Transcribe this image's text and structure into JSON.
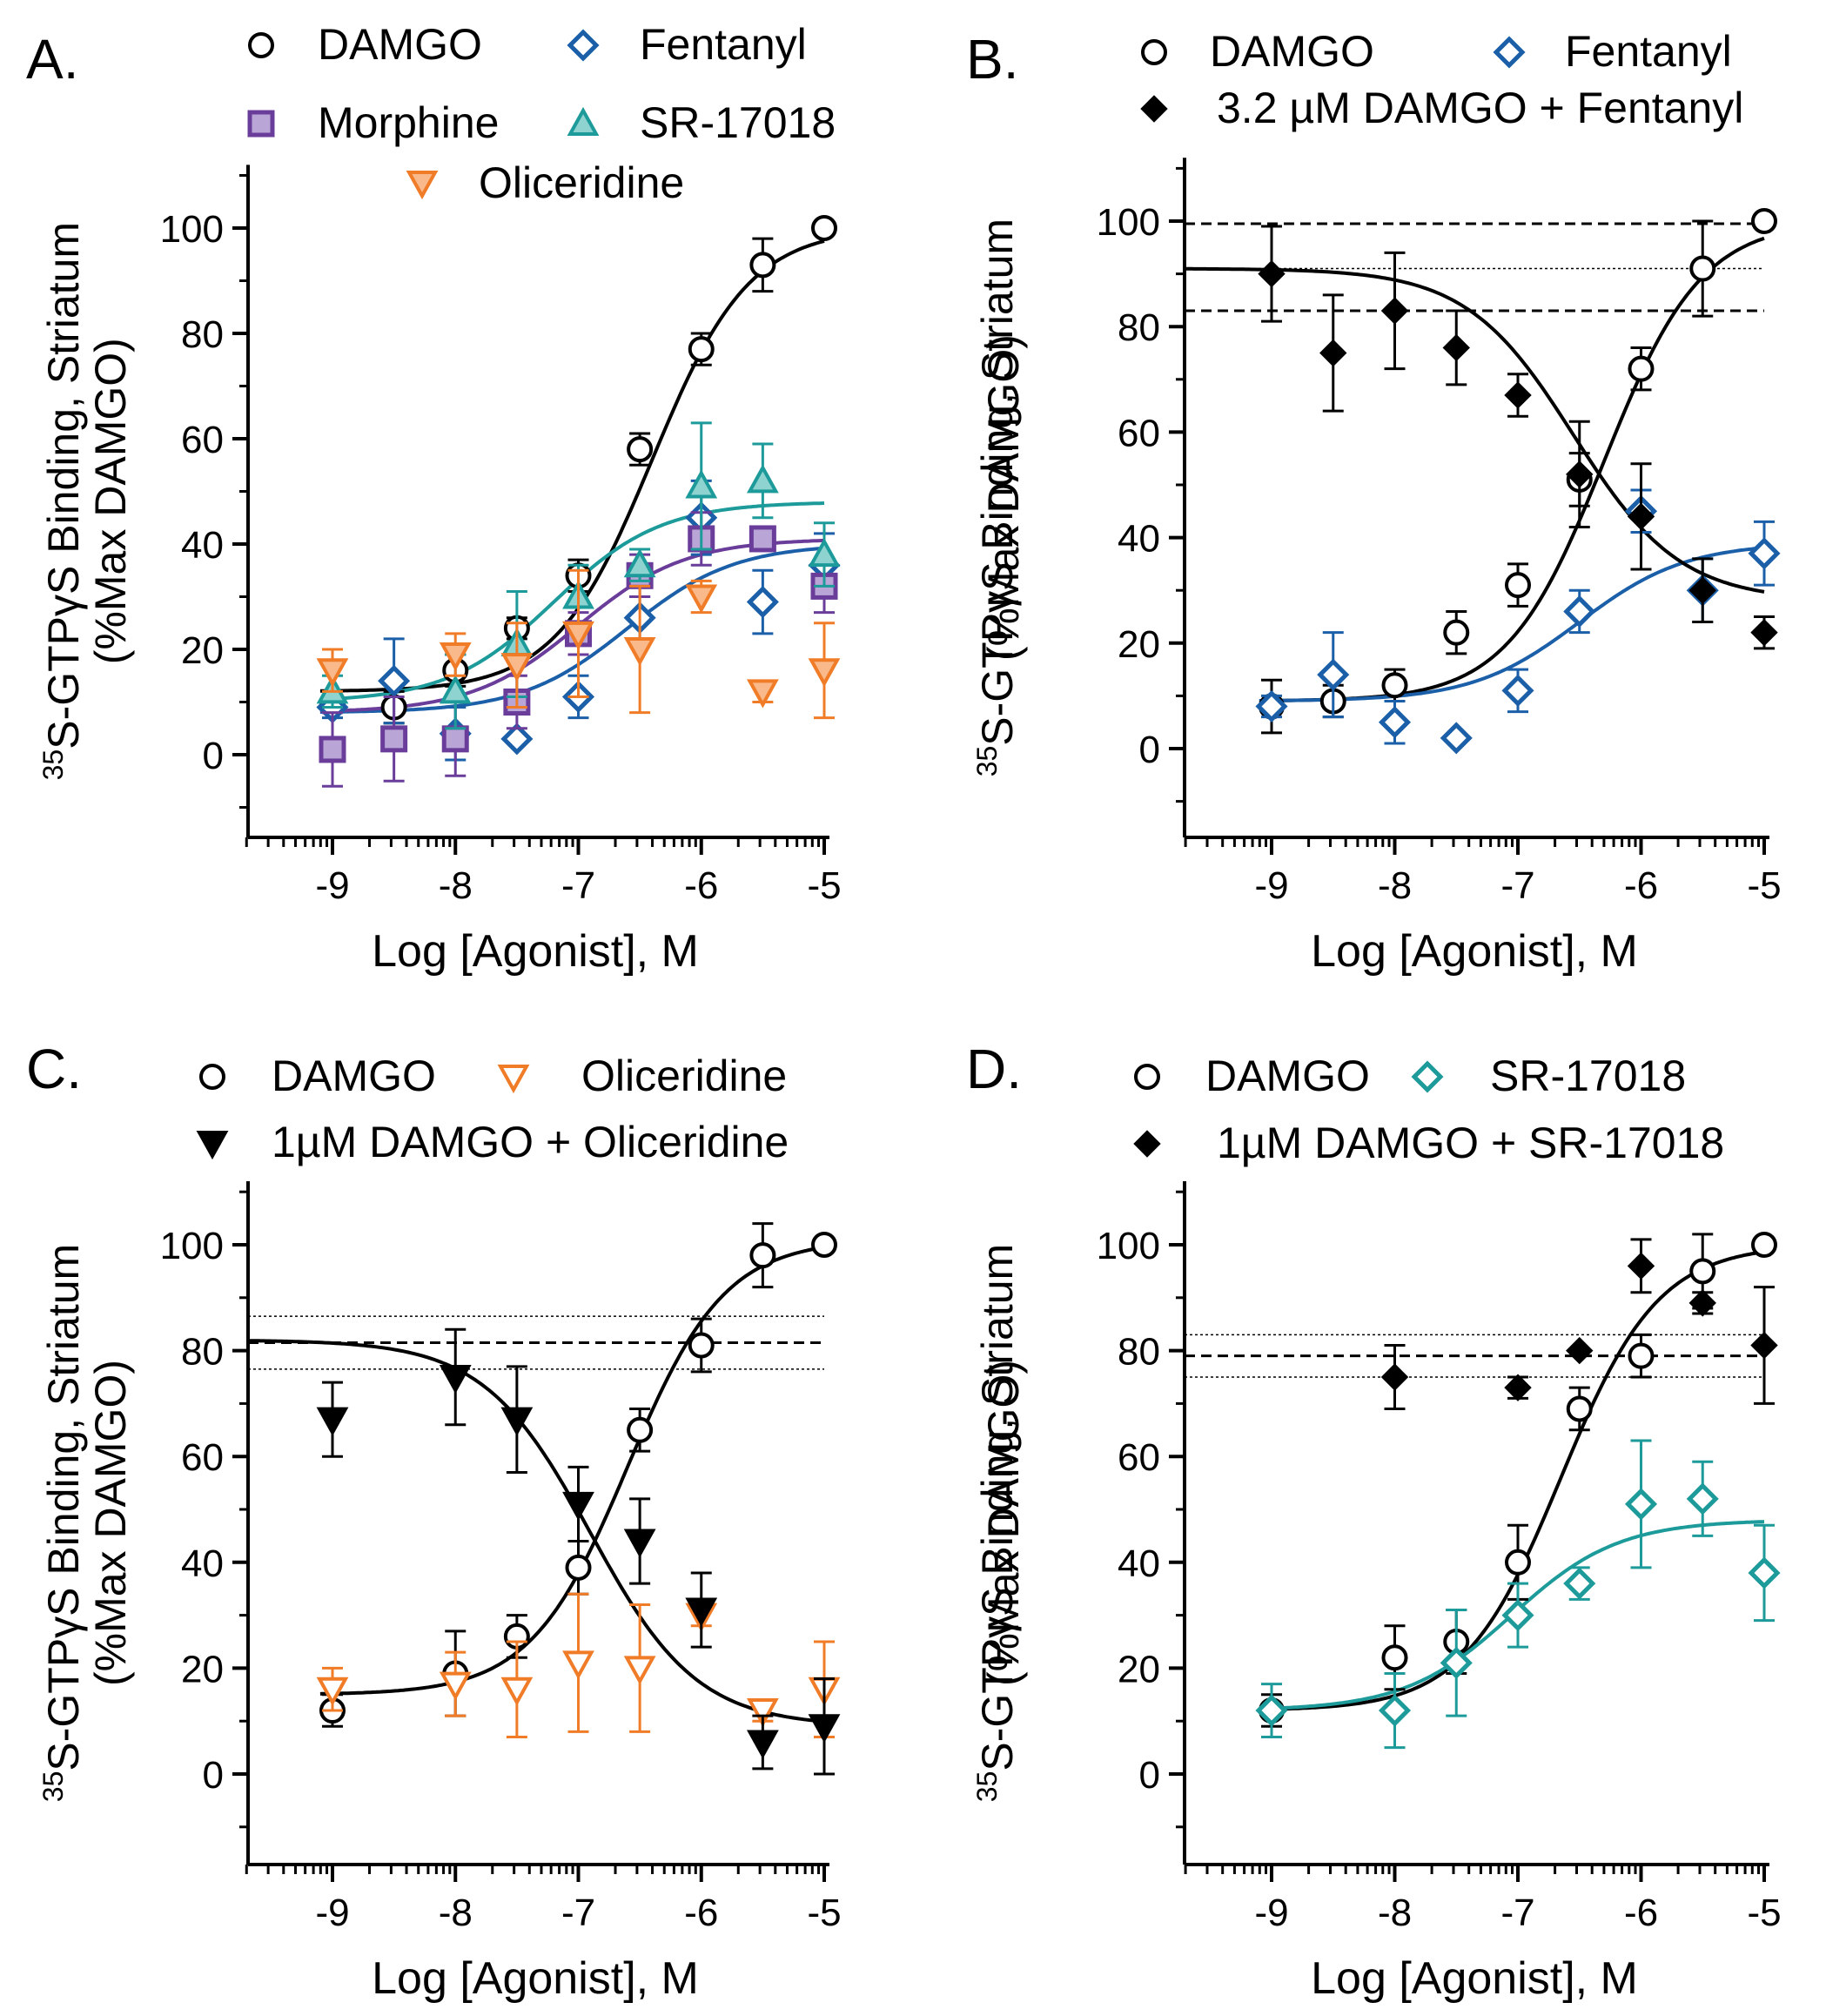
{
  "chart_data": [
    {
      "type": "line",
      "panel": "A.",
      "xlabel": "Log [Agonist], M",
      "ylabel_line1": "S-GTPγS Binding, Striatum",
      "ylabel_sup": "35",
      "ylabel_line2": "(%Max DAMGO)",
      "xlim": [
        -9.7,
        -5
      ],
      "ylim": [
        -15,
        112
      ],
      "xticks": [
        -9,
        -8,
        -7,
        -6,
        -5
      ],
      "xtick_labels": [
        "-9",
        "-8",
        "-7",
        "-6",
        "-5"
      ],
      "yticks": [
        0,
        20,
        40,
        60,
        80,
        100
      ],
      "ytick_labels": [
        "0",
        "20",
        "40",
        "60",
        "80",
        "100"
      ],
      "legend": [
        {
          "label": "DAMGO",
          "series": 0
        },
        {
          "label": "Fentanyl",
          "series": 1
        },
        {
          "label": "Morphine",
          "series": 2
        },
        {
          "label": "SR-17018",
          "series": 3
        },
        {
          "label": "Oliceridine",
          "series": 4
        }
      ],
      "series": [
        {
          "name": "DAMGO",
          "color": "#000000",
          "marker": "circle-open",
          "x": [
            -9,
            -8.5,
            -8,
            -7.5,
            -7,
            -6.5,
            -6,
            -5.5,
            -5
          ],
          "y": [
            10,
            9,
            16,
            24,
            34,
            58,
            77,
            93,
            100
          ],
          "err": [
            2,
            3,
            3,
            2,
            3,
            3,
            3,
            5,
            0
          ],
          "fit": {
            "bottom": 12,
            "top": 100,
            "logec50": -6.4,
            "hill": 1.1
          }
        },
        {
          "name": "Fentanyl",
          "color": "#1a5fa8",
          "marker": "diamond-open",
          "x": [
            -9,
            -8.5,
            -8,
            -7.5,
            -7,
            -6.5,
            -6,
            -5.5,
            -5
          ],
          "y": [
            9,
            14,
            4,
            3,
            11,
            26,
            45,
            29,
            36
          ],
          "err": [
            2,
            8,
            5,
            0,
            4,
            4,
            7,
            6,
            6
          ],
          "fit": {
            "bottom": 8,
            "top": 40,
            "logec50": -6.6,
            "hill": 1.0
          }
        },
        {
          "name": "Morphine",
          "color": "#6a3d9a",
          "fill": "#b9a6d6",
          "marker": "square-filled",
          "x": [
            -9,
            -8.5,
            -8,
            -7.5,
            -7,
            -6.5,
            -6,
            -5.5,
            -5
          ],
          "y": [
            1,
            3,
            3,
            10,
            23,
            34,
            41,
            41,
            32
          ],
          "err": [
            7,
            8,
            7,
            5,
            4,
            4,
            5,
            0,
            5
          ],
          "fit": {
            "bottom": 8,
            "top": 41,
            "logec50": -7.0,
            "hill": 1.0
          }
        },
        {
          "name": "SR-17018",
          "color": "#1d9a9a",
          "fill": "#8fd3d0",
          "marker": "triangle-up-filled",
          "x": [
            -9,
            -8,
            -7.5,
            -7,
            -6.5,
            -6,
            -5.5,
            -5
          ],
          "y": [
            12,
            12,
            21,
            30,
            36,
            51,
            52,
            38
          ],
          "err": [
            3,
            7,
            10,
            6,
            3,
            12,
            7,
            6
          ],
          "fit": {
            "bottom": 10,
            "top": 48,
            "logec50": -7.2,
            "hill": 1.0
          }
        },
        {
          "name": "Oliceridine",
          "color": "#f07c28",
          "fill": "#f9b98a",
          "marker": "triangle-down-filled",
          "x": [
            -9,
            -8,
            -7.5,
            -7,
            -6.5,
            -6,
            -5.5,
            -5
          ],
          "y": [
            16,
            19,
            17,
            23,
            20,
            30,
            12,
            16
          ],
          "err": [
            4,
            4,
            8,
            12,
            12,
            3,
            2,
            9
          ],
          "fit": null
        }
      ]
    },
    {
      "type": "line",
      "panel": "B.",
      "xlabel": "Log [Agonist], M",
      "ylabel_line1": "S-GTPγS Binding, Striatum",
      "ylabel_sup": "35",
      "ylabel_line2": "(%Max DAMGO)",
      "xlim": [
        -9.7,
        -5
      ],
      "ylim": [
        -15,
        112
      ],
      "xticks": [
        -9,
        -8,
        -7,
        -6,
        -5
      ],
      "xtick_labels": [
        "-9",
        "-8",
        "-7",
        "-6",
        "-5"
      ],
      "yticks": [
        0,
        20,
        40,
        60,
        80,
        100
      ],
      "ytick_labels": [
        "0",
        "20",
        "40",
        "60",
        "80",
        "100"
      ],
      "hlines": [
        {
          "y": 99.5,
          "style": "dashed"
        },
        {
          "y": 91,
          "style": "dotted"
        },
        {
          "y": 83,
          "style": "dashed"
        }
      ],
      "legend": [
        {
          "label": "DAMGO",
          "series": 0
        },
        {
          "label": "Fentanyl",
          "series": 1
        },
        {
          "label": "3.2 µM DAMGO + Fentanyl",
          "series": 2
        }
      ],
      "series": [
        {
          "name": "DAMGO",
          "color": "#000000",
          "marker": "circle-open",
          "x": [
            -9,
            -8.5,
            -8,
            -7.5,
            -7,
            -6.5,
            -6,
            -5.5,
            -5
          ],
          "y": [
            8,
            9,
            12,
            22,
            31,
            51,
            72,
            91,
            100
          ],
          "err": [
            5,
            3,
            3,
            4,
            4,
            5,
            4,
            9,
            0
          ],
          "fit": {
            "bottom": 9,
            "top": 100,
            "logec50": -6.3,
            "hill": 1.1
          }
        },
        {
          "name": "Fentanyl",
          "color": "#1a5fa8",
          "marker": "diamond-open",
          "x": [
            -9,
            -8.5,
            -8,
            -7.5,
            -7,
            -6.5,
            -6,
            -5.5,
            -5
          ],
          "y": [
            8,
            14,
            5,
            2,
            11,
            26,
            45,
            30,
            37
          ],
          "err": [
            2,
            8,
            4,
            0,
            4,
            4,
            4,
            6,
            6
          ],
          "fit": {
            "bottom": 9,
            "top": 39,
            "logec50": -6.5,
            "hill": 1.0
          }
        },
        {
          "name": "3.2 µM DAMGO + Fentanyl",
          "color": "#000000",
          "marker": "diamond-filled",
          "x": [
            -9,
            -8.5,
            -8,
            -7.5,
            -7,
            -6.5,
            -6,
            -5.5,
            -5
          ],
          "y": [
            90,
            75,
            83,
            76,
            67,
            52,
            44,
            30,
            22
          ],
          "err": [
            9,
            11,
            11,
            7,
            4,
            10,
            10,
            6,
            3
          ],
          "fit": {
            "bottom": 28,
            "top": 91,
            "logec50": -6.55,
            "hill": -1.0
          }
        }
      ]
    },
    {
      "type": "line",
      "panel": "C.",
      "xlabel": "Log [Agonist], M",
      "ylabel_line1": "S-GTPγS Binding, Striatum",
      "ylabel_sup": "35",
      "ylabel_line2": "(%Max DAMGO)",
      "xlim": [
        -9.7,
        -5
      ],
      "ylim": [
        -15,
        112
      ],
      "xticks": [
        -9,
        -8,
        -7,
        -6,
        -5
      ],
      "xtick_labels": [
        "-9",
        "-8",
        "-7",
        "-6",
        "-5"
      ],
      "yticks": [
        0,
        20,
        40,
        60,
        80,
        100
      ],
      "ytick_labels": [
        "0",
        "20",
        "40",
        "60",
        "80",
        "100"
      ],
      "hlines": [
        {
          "y": 86.5,
          "style": "dotted"
        },
        {
          "y": 81.5,
          "style": "dashed"
        },
        {
          "y": 76.5,
          "style": "dotted"
        }
      ],
      "legend": [
        {
          "label": "DAMGO",
          "series": 0
        },
        {
          "label": "Oliceridine",
          "series": 1
        },
        {
          "label": "1µM DAMGO + Oliceridine",
          "series": 2
        }
      ],
      "series": [
        {
          "name": "DAMGO",
          "color": "#000000",
          "marker": "circle-open",
          "x": [
            -9,
            -8,
            -7.5,
            -7,
            -6.5,
            -6,
            -5.5,
            -5
          ],
          "y": [
            12,
            19,
            26,
            39,
            65,
            81,
            98,
            100
          ],
          "err": [
            3,
            8,
            4,
            5,
            4,
            5,
            6,
            0
          ],
          "fit": {
            "bottom": 15,
            "top": 101,
            "logec50": -6.6,
            "hill": 1.1
          }
        },
        {
          "name": "Oliceridine",
          "color": "#f07c28",
          "marker": "triangle-down-open",
          "x": [
            -9,
            -8,
            -7.5,
            -7,
            -6.5,
            -6,
            -5.5,
            -5
          ],
          "y": [
            16,
            17,
            16,
            21,
            20,
            30,
            12,
            16
          ],
          "err": [
            4,
            6,
            9,
            13,
            12,
            2,
            2,
            9
          ],
          "fit": null
        },
        {
          "name": "1µM DAMGO + Oliceridine",
          "color": "#000000",
          "marker": "triangle-down-filled",
          "x": [
            -9,
            -8,
            -7.5,
            -7,
            -6.5,
            -6,
            -5.5,
            -5
          ],
          "y": [
            67,
            75,
            67,
            51,
            44,
            31,
            6,
            9
          ],
          "err": [
            7,
            9,
            10,
            7,
            8,
            7,
            5,
            9
          ],
          "fit": {
            "bottom": 9,
            "top": 82,
            "logec50": -6.9,
            "hill": -1.0
          }
        }
      ]
    },
    {
      "type": "line",
      "panel": "D.",
      "xlabel": "Log [Agonist], M",
      "ylabel_line1": "S-GTPγS Binding, Striatum",
      "ylabel_sup": "35",
      "ylabel_line2": "(%Max DAMGO)",
      "xlim": [
        -9.7,
        -5
      ],
      "ylim": [
        -15,
        112
      ],
      "xticks": [
        -9,
        -8,
        -7,
        -6,
        -5
      ],
      "xtick_labels": [
        "-9",
        "-8",
        "-7",
        "-6",
        "-5"
      ],
      "yticks": [
        0,
        20,
        40,
        60,
        80,
        100
      ],
      "ytick_labels": [
        "0",
        "20",
        "40",
        "60",
        "80",
        "100"
      ],
      "hlines": [
        {
          "y": 83,
          "style": "dotted"
        },
        {
          "y": 79,
          "style": "dashed"
        },
        {
          "y": 75,
          "style": "dotted"
        }
      ],
      "legend": [
        {
          "label": "DAMGO",
          "series": 0
        },
        {
          "label": "SR-17018",
          "series": 1
        },
        {
          "label": "1µM DAMGO + SR-17018",
          "series": 2
        }
      ],
      "series": [
        {
          "name": "DAMGO",
          "color": "#000000",
          "marker": "circle-open",
          "x": [
            -9,
            -8,
            -7.5,
            -7,
            -6.5,
            -6,
            -5.5,
            -5
          ],
          "y": [
            12,
            22,
            25,
            40,
            69,
            79,
            95,
            100
          ],
          "err": [
            3,
            6,
            6,
            7,
            4,
            4,
            7,
            0
          ],
          "fit": {
            "bottom": 12,
            "top": 100,
            "logec50": -6.65,
            "hill": 1.1
          }
        },
        {
          "name": "SR-17018",
          "color": "#1d9a9a",
          "marker": "diamond-open",
          "x": [
            -9,
            -8,
            -7.5,
            -7,
            -6.5,
            -6,
            -5.5,
            -5
          ],
          "y": [
            12,
            12,
            21,
            30,
            36,
            51,
            52,
            38
          ],
          "err": [
            5,
            7,
            10,
            6,
            3,
            12,
            7,
            9
          ],
          "fit": {
            "bottom": 12,
            "top": 48,
            "logec50": -7.05,
            "hill": 1.0
          }
        },
        {
          "name": "1µM DAMGO + SR-17018",
          "color": "#000000",
          "marker": "diamond-filled",
          "x": [
            -8,
            -7,
            -6.5,
            -6,
            -5.5,
            -5
          ],
          "y": [
            75,
            73,
            80,
            96,
            89,
            81
          ],
          "err": [
            6,
            2,
            0,
            5,
            2,
            11
          ],
          "fit": null
        }
      ]
    }
  ]
}
